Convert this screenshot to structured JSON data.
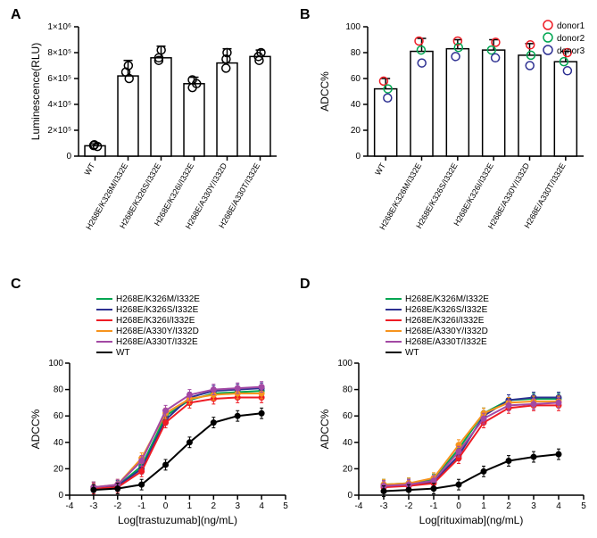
{
  "panelA": {
    "label": "A",
    "type": "bar",
    "ylabel": "Luminescence(RLU)",
    "categories": [
      "WT",
      "H268E/K326M/I332E",
      "H268E/K326S/I332E",
      "H268E/K326I/I332E",
      "H268E/A330Y/I332D",
      "H268E/A330T/I332E"
    ],
    "values": [
      80000,
      620000,
      760000,
      560000,
      720000,
      770000
    ],
    "errors": [
      15000,
      120000,
      90000,
      50000,
      110000,
      50000
    ],
    "scatter": [
      [
        75000,
        82000,
        88000
      ],
      [
        600000,
        650000,
        700000
      ],
      [
        740000,
        760000,
        820000
      ],
      [
        530000,
        560000,
        590000
      ],
      [
        680000,
        750000,
        800000
      ],
      [
        740000,
        770000,
        800000
      ]
    ],
    "bar_fill": "#ffffff",
    "bar_stroke": "#000000",
    "ylim": [
      0,
      1000000
    ],
    "yticks": [
      0,
      200000,
      400000,
      600000,
      800000,
      1000000
    ],
    "ytick_labels": [
      "0",
      "2×10⁵",
      "4×10⁵",
      "6×10⁵",
      "8×10⁵",
      "1×10⁶"
    ],
    "background_color": "#ffffff",
    "marker_color": "#000000",
    "label_fontsize": 12
  },
  "panelB": {
    "label": "B",
    "type": "bar",
    "ylabel": "ADCC%",
    "categories": [
      "WT",
      "H268E/K326M/I332E",
      "H268E/K326S/I332E",
      "H268E/K326I/I332E",
      "H268E/A330Y/I332D",
      "H268E/A330T/I332E"
    ],
    "values": [
      52,
      81,
      83,
      82,
      78,
      73
    ],
    "errors": [
      8,
      10,
      7,
      8,
      9,
      8
    ],
    "legend": [
      {
        "label": "donor1",
        "color": "#ee1c25"
      },
      {
        "label": "donor2",
        "color": "#00a651"
      },
      {
        "label": "donor3",
        "color": "#2e3192"
      }
    ],
    "scatter_donor": [
      {
        "color": "#ee1c25",
        "vals": [
          58,
          89,
          89,
          88,
          86,
          80
        ]
      },
      {
        "color": "#00a651",
        "vals": [
          52,
          82,
          84,
          82,
          78,
          73
        ]
      },
      {
        "color": "#2e3192",
        "vals": [
          45,
          72,
          77,
          76,
          70,
          66
        ]
      }
    ],
    "ylim": [
      0,
      100
    ],
    "yticks": [
      0,
      20,
      40,
      60,
      80,
      100
    ],
    "ytick_labels": [
      "0",
      "20",
      "40",
      "60",
      "80",
      "100"
    ],
    "background_color": "#ffffff"
  },
  "panelC": {
    "label": "C",
    "type": "line",
    "ylabel": "ADCC%",
    "xlabel": "Log[trastuzumab](ng/mL)",
    "xlim": [
      -4,
      5
    ],
    "xticks": [
      -4,
      -3,
      -2,
      -1,
      0,
      1,
      2,
      3,
      4,
      5
    ],
    "xtick_labels": [
      "-4",
      "-3",
      "-2",
      "-1",
      "0",
      "1",
      "2",
      "3",
      "4",
      "5"
    ],
    "ylim": [
      0,
      100
    ],
    "yticks": [
      0,
      20,
      40,
      60,
      80,
      100
    ],
    "ytick_labels": [
      "0",
      "20",
      "40",
      "60",
      "80",
      "100"
    ],
    "series": [
      {
        "label": "H268E/K326M/I332E",
        "color": "#00a651",
        "x": [
          -3,
          -2,
          -1,
          0,
          1,
          2,
          3,
          4
        ],
        "y": [
          6,
          7,
          22,
          60,
          72,
          77,
          78,
          79
        ]
      },
      {
        "label": "H268E/K326S/I332E",
        "color": "#2e3192",
        "x": [
          -3,
          -2,
          -1,
          0,
          1,
          2,
          3,
          4
        ],
        "y": [
          6,
          7,
          20,
          57,
          74,
          79,
          80,
          81
        ]
      },
      {
        "label": "H268E/K326I/I332E",
        "color": "#ee1c25",
        "x": [
          -3,
          -2,
          -1,
          0,
          1,
          2,
          3,
          4
        ],
        "y": [
          5,
          6,
          18,
          55,
          70,
          73,
          74,
          74
        ]
      },
      {
        "label": "H268E/A330Y/I332D",
        "color": "#f7941d",
        "x": [
          -3,
          -2,
          -1,
          0,
          1,
          2,
          3,
          4
        ],
        "y": [
          6,
          8,
          28,
          62,
          73,
          76,
          77,
          77
        ]
      },
      {
        "label": "H268E/A330T/I332E",
        "color": "#a349a4",
        "x": [
          -3,
          -2,
          -1,
          0,
          1,
          2,
          3,
          4
        ],
        "y": [
          6,
          8,
          26,
          64,
          76,
          80,
          81,
          82
        ]
      },
      {
        "label": "WT",
        "color": "#000000",
        "x": [
          -3,
          -2,
          -1,
          0,
          1,
          2,
          3,
          4
        ],
        "y": [
          4,
          5,
          8,
          23,
          40,
          55,
          60,
          62
        ]
      }
    ],
    "err": 4,
    "marker_size": 3
  },
  "panelD": {
    "label": "D",
    "type": "line",
    "ylabel": "ADCC%",
    "xlabel": "Log[rituximab](ng/mL)",
    "xlim": [
      -4,
      5
    ],
    "xticks": [
      -4,
      -3,
      -2,
      -1,
      0,
      1,
      2,
      3,
      4,
      5
    ],
    "xtick_labels": [
      "-4",
      "-3",
      "-2",
      "-1",
      "0",
      "1",
      "2",
      "3",
      "4",
      "5"
    ],
    "ylim": [
      0,
      100
    ],
    "yticks": [
      0,
      20,
      40,
      60,
      80,
      100
    ],
    "ytick_labels": [
      "0",
      "20",
      "40",
      "60",
      "80",
      "100"
    ],
    "series": [
      {
        "label": "H268E/K326M/I332E",
        "color": "#00a651",
        "x": [
          -3,
          -2,
          -1,
          0,
          1,
          2,
          3,
          4
        ],
        "y": [
          8,
          9,
          12,
          35,
          62,
          72,
          73,
          73
        ]
      },
      {
        "label": "H268E/K326S/I332E",
        "color": "#2e3192",
        "x": [
          -3,
          -2,
          -1,
          0,
          1,
          2,
          3,
          4
        ],
        "y": [
          7,
          8,
          10,
          30,
          60,
          72,
          74,
          74
        ]
      },
      {
        "label": "H268E/K326I/I332E",
        "color": "#ee1c25",
        "x": [
          -3,
          -2,
          -1,
          0,
          1,
          2,
          3,
          4
        ],
        "y": [
          6,
          7,
          9,
          28,
          55,
          66,
          68,
          68
        ]
      },
      {
        "label": "H268E/A330Y/I332D",
        "color": "#f7941d",
        "x": [
          -3,
          -2,
          -1,
          0,
          1,
          2,
          3,
          4
        ],
        "y": [
          8,
          9,
          13,
          38,
          62,
          70,
          71,
          71
        ]
      },
      {
        "label": "H268E/A330T/I332E",
        "color": "#a349a4",
        "x": [
          -3,
          -2,
          -1,
          0,
          1,
          2,
          3,
          4
        ],
        "y": [
          7,
          8,
          11,
          33,
          58,
          68,
          69,
          70
        ]
      },
      {
        "label": "WT",
        "color": "#000000",
        "x": [
          -3,
          -2,
          -1,
          0,
          1,
          2,
          3,
          4
        ],
        "y": [
          3,
          4,
          5,
          8,
          18,
          26,
          29,
          31
        ]
      }
    ],
    "err": 4,
    "marker_size": 3
  }
}
